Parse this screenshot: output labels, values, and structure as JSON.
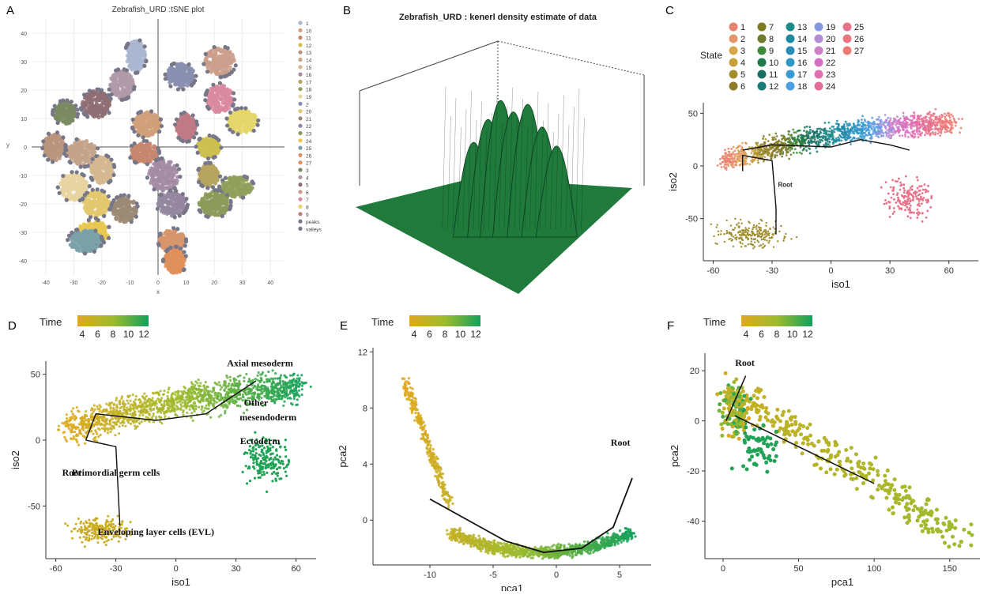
{
  "panel_letters": [
    "A",
    "B",
    "C",
    "D",
    "E",
    "F"
  ],
  "colors": {
    "time_low": "#e0a81e",
    "time_mid": "#9dbb2e",
    "time_high": "#12a05a",
    "density_surface": "#1f7a3c",
    "tsne_points": "#777788"
  },
  "chart_data": [
    {
      "id": "A",
      "type": "scatter",
      "title": "Zebrafish_URD :tSNE plot",
      "xlabel": "x",
      "ylabel": "y",
      "xlim": [
        -45,
        45
      ],
      "ylim": [
        -45,
        45
      ],
      "xticks": [
        "-40",
        "-30",
        "-20",
        "-10",
        "0",
        "10",
        "20",
        "30",
        "40"
      ],
      "yticks": [
        "40",
        "30",
        "20",
        "10",
        "0",
        "-10",
        "-20",
        "-30",
        "-40"
      ],
      "legend_position": "right",
      "legend": [
        "1",
        "10",
        "11",
        "12",
        "13",
        "14",
        "15",
        "16",
        "17",
        "18",
        "19",
        "2",
        "20",
        "21",
        "22",
        "23",
        "24",
        "25",
        "26",
        "27",
        "3",
        "4",
        "5",
        "6",
        "7",
        "8",
        "9",
        "peaks",
        "valleys"
      ],
      "clusters": [
        {
          "name": "1",
          "x": -8,
          "y": 32,
          "color": "#aab7d0"
        },
        {
          "name": "2",
          "x": 8,
          "y": 25,
          "color": "#8a8fb0"
        },
        {
          "name": "3",
          "x": -33,
          "y": 12,
          "color": "#7a8a62"
        },
        {
          "name": "4",
          "x": -13,
          "y": 22,
          "color": "#b09aa8"
        },
        {
          "name": "5",
          "x": -22,
          "y": 15,
          "color": "#8f6e74"
        },
        {
          "name": "6",
          "x": 22,
          "y": 30,
          "color": "#cc9f8c"
        },
        {
          "name": "7",
          "x": 22,
          "y": 17,
          "color": "#d98aa0"
        },
        {
          "name": "8",
          "x": 30,
          "y": 9,
          "color": "#e6d66a"
        },
        {
          "name": "9",
          "x": 10,
          "y": 7,
          "color": "#c07a86"
        },
        {
          "name": "10",
          "x": -4,
          "y": 8,
          "color": "#d0a07a"
        },
        {
          "name": "11",
          "x": -5,
          "y": -2,
          "color": "#c5876e"
        },
        {
          "name": "12",
          "x": 18,
          "y": 0,
          "color": "#cdc050"
        },
        {
          "name": "13",
          "x": -37,
          "y": 0,
          "color": "#b9957e"
        },
        {
          "name": "14",
          "x": -27,
          "y": -2,
          "color": "#c4a389"
        },
        {
          "name": "15",
          "x": -20,
          "y": -8,
          "color": "#d5b890"
        },
        {
          "name": "16",
          "x": 2,
          "y": -10,
          "color": "#a58ca5"
        },
        {
          "name": "17",
          "x": 18,
          "y": -10,
          "color": "#b6a45f"
        },
        {
          "name": "18",
          "x": 28,
          "y": -14,
          "color": "#90a05a"
        },
        {
          "name": "19",
          "x": -30,
          "y": -14,
          "color": "#e8d4a0"
        },
        {
          "name": "20",
          "x": -22,
          "y": -20,
          "color": "#e2c86e"
        },
        {
          "name": "21",
          "x": -12,
          "y": -22,
          "color": "#9c8a76"
        },
        {
          "name": "22",
          "x": 5,
          "y": -20,
          "color": "#9687a0"
        },
        {
          "name": "23",
          "x": 20,
          "y": -20,
          "color": "#8c9a5a"
        },
        {
          "name": "24",
          "x": -23,
          "y": -30,
          "color": "#e8c850"
        },
        {
          "name": "25",
          "x": -26,
          "y": -33,
          "color": "#7aa0a8"
        },
        {
          "name": "26",
          "x": 5,
          "y": -33,
          "color": "#d6956a"
        },
        {
          "name": "27",
          "x": 6,
          "y": -40,
          "color": "#e0905a"
        }
      ]
    },
    {
      "id": "B",
      "type": "area",
      "subtype": "3d-surface",
      "title": "Zebrafish_URD : kenerl density estimate of data",
      "peaks": [
        {
          "x": 0.3,
          "h": 0.5
        },
        {
          "x": 0.38,
          "h": 0.62
        },
        {
          "x": 0.45,
          "h": 0.72
        },
        {
          "x": 0.52,
          "h": 0.66
        },
        {
          "x": 0.6,
          "h": 0.7
        },
        {
          "x": 0.68,
          "h": 0.58
        },
        {
          "x": 0.76,
          "h": 0.48
        }
      ]
    },
    {
      "id": "C",
      "type": "scatter",
      "xlabel": "iso1",
      "ylabel": "iso2",
      "xlim": [
        -65,
        75
      ],
      "ylim": [
        -90,
        60
      ],
      "xticks": [
        -60,
        -30,
        0,
        30,
        60
      ],
      "yticks": [
        50,
        0,
        -50
      ],
      "legend_title": "State",
      "legend_position": "top",
      "states": [
        {
          "name": "1",
          "color": "#e8826e"
        },
        {
          "name": "2",
          "color": "#e4956a"
        },
        {
          "name": "3",
          "color": "#dba448"
        },
        {
          "name": "4",
          "color": "#c9a13c"
        },
        {
          "name": "5",
          "color": "#a08e2e"
        },
        {
          "name": "6",
          "color": "#8c7a2c"
        },
        {
          "name": "7",
          "color": "#7f7a26"
        },
        {
          "name": "8",
          "color": "#6f7a2e"
        },
        {
          "name": "9",
          "color": "#3f8a3a"
        },
        {
          "name": "10",
          "color": "#1f7a4a"
        },
        {
          "name": "11",
          "color": "#1b6f62"
        },
        {
          "name": "12",
          "color": "#1a7a75"
        },
        {
          "name": "13",
          "color": "#1a8c8c"
        },
        {
          "name": "14",
          "color": "#1c8aa0"
        },
        {
          "name": "15",
          "color": "#2a8cb4"
        },
        {
          "name": "16",
          "color": "#3198c6"
        },
        {
          "name": "17",
          "color": "#3a9ad4"
        },
        {
          "name": "18",
          "color": "#4f9ee4"
        },
        {
          "name": "19",
          "color": "#8498e0"
        },
        {
          "name": "20",
          "color": "#b48cd4"
        },
        {
          "name": "21",
          "color": "#cc7ec6"
        },
        {
          "name": "22",
          "color": "#d86ec0"
        },
        {
          "name": "23",
          "color": "#e070b0"
        },
        {
          "name": "24",
          "color": "#e26e9a"
        },
        {
          "name": "25",
          "color": "#e8728a"
        },
        {
          "name": "26",
          "color": "#ec7580"
        },
        {
          "name": "27",
          "color": "#ec7a70"
        }
      ],
      "annotations": [
        {
          "text": "Root",
          "x": -27,
          "y": -20
        }
      ]
    },
    {
      "id": "D",
      "type": "scatter",
      "xlabel": "iso1",
      "ylabel": "iso2",
      "xlim": [
        -65,
        70
      ],
      "ylim": [
        -90,
        60
      ],
      "xticks": [
        -60,
        -30,
        0,
        30,
        60
      ],
      "yticks": [
        50,
        0,
        -50
      ],
      "legend_title": "Time",
      "legend_ticks": [
        "4",
        "6",
        "8",
        "10",
        "12"
      ],
      "annotations": [
        {
          "text": "Axial mesoderm",
          "x": 42,
          "y": 56
        },
        {
          "text": "Other",
          "x": 40,
          "y": 26
        },
        {
          "text": "mesendoderm",
          "x": 46,
          "y": 15
        },
        {
          "text": "Ectoderm",
          "x": 42,
          "y": -3
        },
        {
          "text": "Root",
          "x": -52,
          "y": -27
        },
        {
          "text": "Primordial germ cells",
          "x": -30,
          "y": -27
        },
        {
          "text": "Enveloping layer cells (EVL)",
          "x": -10,
          "y": -72
        }
      ]
    },
    {
      "id": "E",
      "type": "scatter",
      "xlabel": "pca1",
      "ylabel": "pca2",
      "xlim": [
        -14.5,
        7.5
      ],
      "ylim": [
        -3.2,
        12.3
      ],
      "xticks": [
        -10,
        -5,
        0,
        5
      ],
      "yticks": [
        12,
        8,
        4,
        0
      ],
      "legend_title": "Time",
      "legend_ticks": [
        "4",
        "6",
        "8",
        "10",
        "12"
      ],
      "annotations": [
        {
          "text": "Root",
          "x": 4.3,
          "y": 5.3
        }
      ],
      "trajectory": [
        [
          -10,
          1.5
        ],
        [
          -7,
          0
        ],
        [
          -4,
          -1.5
        ],
        [
          -1,
          -2.3
        ],
        [
          2,
          -2
        ],
        [
          4.5,
          -0.5
        ],
        [
          6,
          3
        ]
      ]
    },
    {
      "id": "F",
      "type": "scatter",
      "xlabel": "pca1",
      "ylabel": "pca2",
      "xlim": [
        -12,
        170
      ],
      "ylim": [
        -55,
        27
      ],
      "xticks": [
        0,
        50,
        100,
        150
      ],
      "yticks": [
        20,
        0,
        -20,
        -40
      ],
      "legend_title": "Time",
      "legend_ticks": [
        "4",
        "6",
        "8",
        "10",
        "12"
      ],
      "annotations": [
        {
          "text": "Root",
          "x": 8,
          "y": 22
        }
      ]
    }
  ]
}
